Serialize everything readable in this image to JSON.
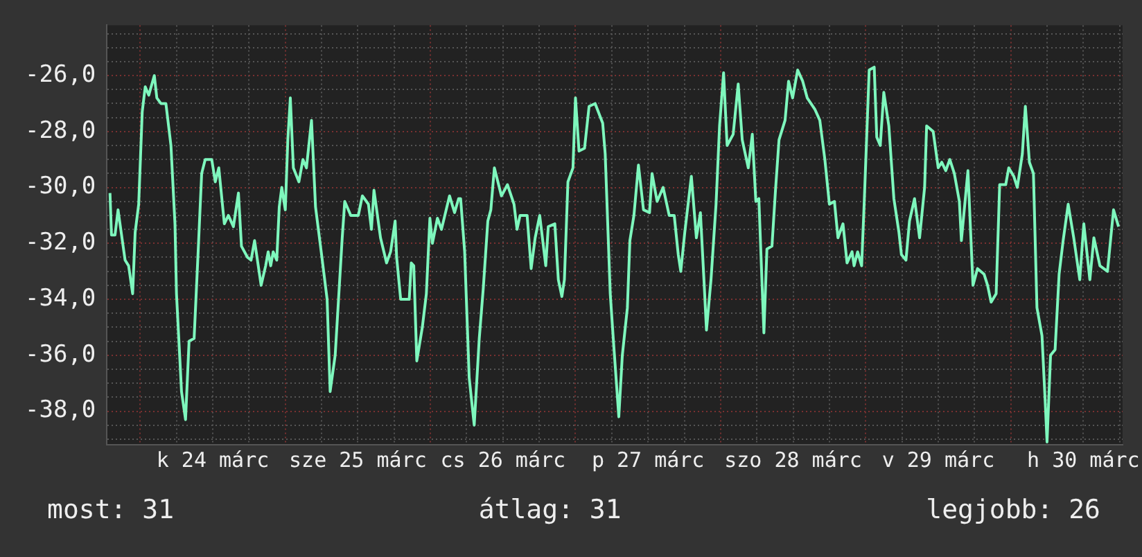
{
  "chart_data": {
    "type": "line",
    "annotations": [
      "most: 31",
      "átlag: 31",
      "legjobb: 26"
    ],
    "xlim": [
      "--03-23T18:30",
      "--03-30T18:30"
    ],
    "xticks": [
      {
        "value": "--03-24T00:00",
        "label": null
      },
      {
        "value": "--03-24T06:00",
        "label": null
      },
      {
        "value": "--03-24T12:00",
        "label": "k 24 márc"
      },
      {
        "value": "--03-24T18:00",
        "label": null
      },
      {
        "value": "--03-25T00:00",
        "label": null
      },
      {
        "value": "--03-25T06:00",
        "label": null
      },
      {
        "value": "--03-25T12:00",
        "label": "sze 25 márc"
      },
      {
        "value": "--03-25T18:00",
        "label": null
      },
      {
        "value": "--03-26T00:00",
        "label": null
      },
      {
        "value": "--03-26T06:00",
        "label": null
      },
      {
        "value": "--03-26T12:00",
        "label": "cs 26 márc"
      },
      {
        "value": "--03-26T18:00",
        "label": null
      },
      {
        "value": "--03-27T00:00",
        "label": null
      },
      {
        "value": "--03-27T06:00",
        "label": null
      },
      {
        "value": "--03-27T12:00",
        "label": "p 27 márc"
      },
      {
        "value": "--03-27T18:00",
        "label": null
      },
      {
        "value": "--03-28T00:00",
        "label": null
      },
      {
        "value": "--03-28T06:00",
        "label": null
      },
      {
        "value": "--03-28T12:00",
        "label": "szo 28 márc"
      },
      {
        "value": "--03-28T18:00",
        "label": null
      },
      {
        "value": "--03-29T00:00",
        "label": null
      },
      {
        "value": "--03-29T06:00",
        "label": null
      },
      {
        "value": "--03-29T12:00",
        "label": "v 29 márc"
      },
      {
        "value": "--03-29T18:00",
        "label": null
      },
      {
        "value": "--03-30T00:00",
        "label": null
      },
      {
        "value": "--03-30T06:00",
        "label": null
      },
      {
        "value": "--03-30T12:00",
        "label": "h 30 márc"
      },
      {
        "value": "--03-30T18:00",
        "label": null
      }
    ],
    "ylim": [
      -39.2,
      -24.2
    ],
    "yticks": [
      {
        "value": -39,
        "label": null
      },
      {
        "value": -38.5,
        "label": null
      },
      {
        "value": -38,
        "label": "-38,0"
      },
      {
        "value": -37.5,
        "label": null
      },
      {
        "value": -37,
        "label": null
      },
      {
        "value": -36.5,
        "label": null
      },
      {
        "value": -36,
        "label": "-36,0"
      },
      {
        "value": -35.5,
        "label": null
      },
      {
        "value": -35,
        "label": null
      },
      {
        "value": -34.5,
        "label": null
      },
      {
        "value": -34,
        "label": "-34,0"
      },
      {
        "value": -33.5,
        "label": null
      },
      {
        "value": -33,
        "label": null
      },
      {
        "value": -32.5,
        "label": null
      },
      {
        "value": -32,
        "label": "-32,0"
      },
      {
        "value": -31.5,
        "label": null
      },
      {
        "value": -31,
        "label": null
      },
      {
        "value": -30.5,
        "label": null
      },
      {
        "value": -30,
        "label": "-30,0"
      },
      {
        "value": -29.5,
        "label": null
      },
      {
        "value": -29,
        "label": null
      },
      {
        "value": -28.5,
        "label": null
      },
      {
        "value": -28,
        "label": "-28,0"
      },
      {
        "value": -27.5,
        "label": null
      },
      {
        "value": -27,
        "label": null
      },
      {
        "value": -26.5,
        "label": null
      },
      {
        "value": -26,
        "label": "-26,0"
      },
      {
        "value": -25.5,
        "label": null
      },
      {
        "value": -25,
        "label": null
      },
      {
        "value": -24.5,
        "label": null
      }
    ],
    "grid": true,
    "legend": false,
    "marker": "none",
    "line_style": "solid",
    "series": [
      {
        "color": "#7ef7bd",
        "x": [
          "--03-23T19:00",
          "--03-23T19:15",
          "--03-23T19:50",
          "--03-23T20:20",
          "--03-23T20:55",
          "--03-23T21:30",
          "--03-23T22:05",
          "--03-23T22:45",
          "--03-23T23:10",
          "--03-23T23:45",
          "--03-24T00:20",
          "--03-24T00:50",
          "--03-24T01:25",
          "--03-24T02:20",
          "--03-24T02:45",
          "--03-24T03:25",
          "--03-24T04:15",
          "--03-24T05:05",
          "--03-24T05:45",
          "--03-24T06:00",
          "--03-24T06:50",
          "--03-24T07:30",
          "--03-24T08:05",
          "--03-24T08:55",
          "--03-24T09:35",
          "--03-24T10:10",
          "--03-24T10:45",
          "--03-24T11:50",
          "--03-24T12:25",
          "--03-24T13:00",
          "--03-24T13:55",
          "--03-24T14:35",
          "--03-24T15:25",
          "--03-24T16:15",
          "--03-24T16:45",
          "--03-24T17:45",
          "--03-24T18:20",
          "--03-24T18:55",
          "--03-24T20:00",
          "--03-24T20:45",
          "--03-24T21:10",
          "--03-24T21:35",
          "--03-24T22:00",
          "--03-24T22:35",
          "--03-24T23:00",
          "--03-24T23:25",
          "--03-25T00:00",
          "--03-25T00:25",
          "--03-25T00:50",
          "--03-25T01:20",
          "--03-25T02:15",
          "--03-25T02:55",
          "--03-25T03:30",
          "--03-25T04:20",
          "--03-25T05:00",
          "--03-25T06:00",
          "--03-25T06:55",
          "--03-25T07:25",
          "--03-25T08:15",
          "--03-25T09:25",
          "--03-25T09:50",
          "--03-25T10:50",
          "--03-25T12:05",
          "--03-25T12:45",
          "--03-25T13:45",
          "--03-25T14:15",
          "--03-25T14:40",
          "--03-25T15:45",
          "--03-25T16:45",
          "--03-25T17:25",
          "--03-25T18:10",
          "--03-25T18:25",
          "--03-25T19:05",
          "--03-25T20:30",
          "--03-25T20:50",
          "--03-25T21:15",
          "--03-25T21:45",
          "--03-25T22:40",
          "--03-25T23:20",
          "--03-25T23:55",
          "--03-26T00:20",
          "--03-26T01:10",
          "--03-26T01:50",
          "--03-26T03:10",
          "--03-26T04:00",
          "--03-26T04:40",
          "--03-26T05:00",
          "--03-26T05:40",
          "--03-26T06:25",
          "--03-26T07:15",
          "--03-26T08:05",
          "--03-26T08:45",
          "--03-26T09:30",
          "--03-26T10:00",
          "--03-26T10:35",
          "--03-26T11:45",
          "--03-26T12:45",
          "--03-26T13:50",
          "--03-26T14:20",
          "--03-26T14:50",
          "--03-26T16:00",
          "--03-26T16:40",
          "--03-26T17:20",
          "--03-26T18:05",
          "--03-26T19:05",
          "--03-26T19:30",
          "--03-26T20:35",
          "--03-26T21:10",
          "--03-26T21:45",
          "--03-26T22:10",
          "--03-26T22:45",
          "--03-26T23:35",
          "--03-27T00:00",
          "--03-27T00:35",
          "--03-27T01:30",
          "--03-27T02:15",
          "--03-27T03:15",
          "--03-27T04:30",
          "--03-27T04:55",
          "--03-27T05:45",
          "--03-27T06:15",
          "--03-27T07:10",
          "--03-27T07:45",
          "--03-27T08:35",
          "--03-27T09:00",
          "--03-27T09:40",
          "--03-27T10:25",
          "--03-27T11:15",
          "--03-27T12:15",
          "--03-27T12:40",
          "--03-27T13:30",
          "--03-27T14:30",
          "--03-27T15:30",
          "--03-27T16:20",
          "--03-27T17:00",
          "--03-27T17:25",
          "--03-27T18:05",
          "--03-27T19:10",
          "--03-27T20:00",
          "--03-27T20:40",
          "--03-27T21:15",
          "--03-27T21:40",
          "--03-27T22:25",
          "--03-27T23:15",
          "--03-27T23:50",
          "--03-28T00:30",
          "--03-28T01:05",
          "--03-28T02:05",
          "--03-28T02:55",
          "--03-28T03:35",
          "--03-28T04:35",
          "--03-28T05:15",
          "--03-28T05:50",
          "--03-28T06:20",
          "--03-28T07:10",
          "--03-28T07:40",
          "--03-28T08:30",
          "--03-28T09:05",
          "--03-28T09:40",
          "--03-28T10:40",
          "--03-28T11:15",
          "--03-28T11:55",
          "--03-28T12:45",
          "--03-28T13:35",
          "--03-28T14:20",
          "--03-28T15:35",
          "--03-28T16:25",
          "--03-28T17:15",
          "--03-28T18:00",
          "--03-28T18:50",
          "--03-28T19:25",
          "--03-28T20:15",
          "--03-28T20:55",
          "--03-28T21:45",
          "--03-28T22:05",
          "--03-28T22:40",
          "--03-28T23:20",
          "--03-28T23:45",
          "--03-29T00:35",
          "--03-29T01:25",
          "--03-29T01:50",
          "--03-29T02:25",
          "--03-29T03:00",
          "--03-29T03:50",
          "--03-29T04:40",
          "--03-29T05:30",
          "--03-29T05:55",
          "--03-29T06:40",
          "--03-29T07:15",
          "--03-29T08:05",
          "--03-29T08:55",
          "--03-29T09:45",
          "--03-29T10:05",
          "--03-29T11:10",
          "--03-29T12:00",
          "--03-29T12:35",
          "--03-29T13:15",
          "--03-29T13:55",
          "--03-29T14:40",
          "--03-29T15:30",
          "--03-29T15:50",
          "--03-29T16:55",
          "--03-29T17:45",
          "--03-29T18:30",
          "--03-29T19:35",
          "--03-29T20:10",
          "--03-29T20:45",
          "--03-29T21:35",
          "--03-29T22:10",
          "--03-29T23:10",
          "--03-29T23:40",
          "--03-30T00:30",
          "--03-30T01:05",
          "--03-30T01:55",
          "--03-30T02:25",
          "--03-30T03:05",
          "--03-30T03:45",
          "--03-30T04:20",
          "--03-30T05:10",
          "--03-30T05:45",
          "--03-30T06:00",
          "--03-30T06:35",
          "--03-30T07:20",
          "--03-30T08:00",
          "--03-30T08:40",
          "--03-30T09:30",
          "--03-30T10:25",
          "--03-30T11:25",
          "--03-30T12:05",
          "--03-30T13:05",
          "--03-30T13:45",
          "--03-30T14:45",
          "--03-30T16:00",
          "--03-30T17:00",
          "--03-30T17:50"
        ],
        "values": [
          -30.2,
          -31.7,
          -31.7,
          -30.8,
          -31.7,
          -32.6,
          -32.8,
          -33.8,
          -31.6,
          -30.6,
          -27.3,
          -26.4,
          -26.7,
          -26.0,
          -26.8,
          -27.0,
          -27.0,
          -28.5,
          -31.3,
          -33.8,
          -37.3,
          -38.3,
          -35.5,
          -35.4,
          -32.3,
          -29.5,
          -29.0,
          -29.0,
          -29.8,
          -29.3,
          -31.3,
          -31.0,
          -31.4,
          -30.2,
          -32.1,
          -32.5,
          -32.6,
          -31.9,
          -33.5,
          -32.8,
          -32.3,
          -32.8,
          -32.3,
          -32.6,
          -30.7,
          -30.0,
          -30.8,
          -28.3,
          -26.8,
          -29.3,
          -29.8,
          -29.0,
          -29.3,
          -27.6,
          -30.7,
          -32.4,
          -34.0,
          -37.3,
          -36.0,
          -31.8,
          -30.5,
          -31.0,
          -31.0,
          -30.3,
          -30.6,
          -31.5,
          -30.1,
          -31.8,
          -32.7,
          -32.3,
          -31.2,
          -32.5,
          -34.0,
          -34.0,
          -32.7,
          -32.8,
          -36.2,
          -35.0,
          -33.8,
          -31.1,
          -32.0,
          -31.1,
          -31.5,
          -30.3,
          -30.9,
          -30.4,
          -30.4,
          -32.3,
          -36.8,
          -38.5,
          -35.4,
          -33.6,
          -31.2,
          -30.8,
          -29.3,
          -30.3,
          -29.9,
          -30.6,
          -31.5,
          -31.0,
          -31.0,
          -32.9,
          -31.8,
          -31.0,
          -32.8,
          -31.4,
          -31.3,
          -33.3,
          -33.9,
          -33.3,
          -29.8,
          -29.3,
          -26.8,
          -28.7,
          -28.6,
          -27.1,
          -27.0,
          -27.7,
          -28.8,
          -33.8,
          -35.4,
          -38.2,
          -36.0,
          -34.3,
          -31.9,
          -31.0,
          -29.2,
          -30.8,
          -30.9,
          -29.5,
          -30.5,
          -30.0,
          -31.0,
          -31.0,
          -32.4,
          -33.0,
          -31.6,
          -29.6,
          -31.8,
          -30.9,
          -33.3,
          -35.1,
          -33.3,
          -30.6,
          -27.8,
          -25.9,
          -28.5,
          -28.1,
          -26.3,
          -28.3,
          -29.3,
          -28.1,
          -30.5,
          -30.4,
          -35.2,
          -32.2,
          -32.1,
          -30.1,
          -28.3,
          -27.6,
          -26.2,
          -26.8,
          -25.8,
          -26.2,
          -26.8,
          -27.2,
          -27.6,
          -29.0,
          -30.6,
          -30.5,
          -31.8,
          -31.3,
          -32.7,
          -32.3,
          -32.8,
          -32.3,
          -32.8,
          -30.6,
          -25.8,
          -25.7,
          -28.2,
          -28.5,
          -26.6,
          -27.8,
          -30.4,
          -31.6,
          -32.4,
          -32.6,
          -31.2,
          -30.4,
          -31.8,
          -30.0,
          -27.8,
          -28.0,
          -29.3,
          -29.1,
          -29.4,
          -29.0,
          -29.5,
          -30.5,
          -31.9,
          -29.4,
          -33.5,
          -32.9,
          -33.1,
          -33.5,
          -34.1,
          -33.8,
          -29.9,
          -29.9,
          -29.3,
          -29.6,
          -30.0,
          -28.8,
          -27.1,
          -29.1,
          -29.5,
          -34.3,
          -35.3,
          -37.9,
          -39.1,
          -36.0,
          -35.8,
          -33.1,
          -31.9,
          -30.6,
          -31.8,
          -33.3,
          -31.3,
          -33.3,
          -31.8,
          -32.8,
          -33.0,
          -30.8,
          -31.4
        ]
      }
    ]
  }
}
